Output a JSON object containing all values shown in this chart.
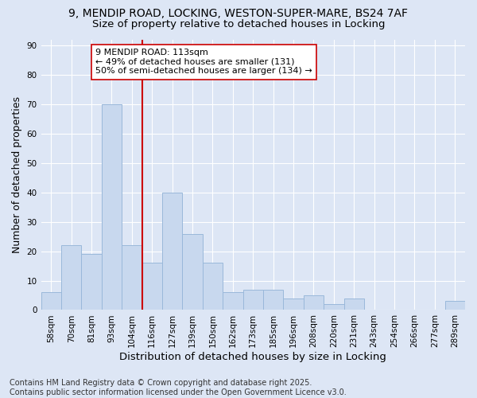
{
  "title1": "9, MENDIP ROAD, LOCKING, WESTON-SUPER-MARE, BS24 7AF",
  "title2": "Size of property relative to detached houses in Locking",
  "xlabel": "Distribution of detached houses by size in Locking",
  "ylabel": "Number of detached properties",
  "categories": [
    "58sqm",
    "70sqm",
    "81sqm",
    "93sqm",
    "104sqm",
    "116sqm",
    "127sqm",
    "139sqm",
    "150sqm",
    "162sqm",
    "173sqm",
    "185sqm",
    "196sqm",
    "208sqm",
    "220sqm",
    "231sqm",
    "243sqm",
    "254sqm",
    "266sqm",
    "277sqm",
    "289sqm"
  ],
  "values": [
    6,
    22,
    19,
    70,
    22,
    16,
    40,
    26,
    16,
    6,
    7,
    7,
    4,
    5,
    2,
    4,
    0,
    0,
    0,
    0,
    3
  ],
  "bar_color": "#c8d8ee",
  "bar_edge_color": "#9ab8da",
  "vline_x": 4.5,
  "vline_color": "#cc0000",
  "annotation_text": "9 MENDIP ROAD: 113sqm\n← 49% of detached houses are smaller (131)\n50% of semi-detached houses are larger (134) →",
  "annotation_box_color": "#ffffff",
  "annotation_box_edge": "#cc0000",
  "ylim": [
    0,
    92
  ],
  "yticks": [
    0,
    10,
    20,
    30,
    40,
    50,
    60,
    70,
    80,
    90
  ],
  "background_color": "#dde6f5",
  "plot_bg_color": "#dde6f5",
  "footer_text": "Contains HM Land Registry data © Crown copyright and database right 2025.\nContains public sector information licensed under the Open Government Licence v3.0.",
  "title_fontsize": 10,
  "subtitle_fontsize": 9.5,
  "annotation_fontsize": 8,
  "tick_fontsize": 7.5,
  "ylabel_fontsize": 9,
  "xlabel_fontsize": 9.5,
  "footer_fontsize": 7
}
